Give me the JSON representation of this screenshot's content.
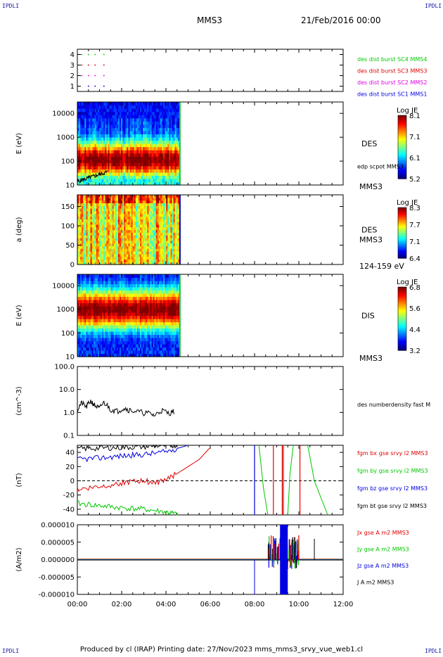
{
  "corner_label": "IPDLI",
  "header": {
    "spacecraft": "MMS3",
    "date": "21/Feb/2016 00:00"
  },
  "footer": {
    "text": "Produced by cl (IRAP)   Printing date: 27/Nov/2023   mms_mms3_srvy_vue_web1.cl"
  },
  "colors": {
    "red": "#e00000",
    "green": "#00c800",
    "blue": "#0000e0",
    "black": "#000000",
    "magenta": "#e000e0"
  },
  "chart_data": [
    {
      "type": "scatter",
      "id": "burst",
      "yticks": [
        "1",
        "2",
        "3",
        "4"
      ],
      "xlim": [
        0,
        12
      ],
      "ylim": [
        0.5,
        4.5
      ],
      "series": [
        {
          "label": "des dist burst SC1 MMS1",
          "color": "#0000e0",
          "y": 1,
          "x": [
            0.5,
            0.8,
            1.2
          ]
        },
        {
          "label": "des dist burst SC2 MMS2",
          "color": "#e000e0",
          "y": 2,
          "x": [
            0.2,
            0.5,
            0.8,
            1.2
          ]
        },
        {
          "label": "des dist burst SC3 MMS3",
          "color": "#e00000",
          "y": 3,
          "x": [
            0.2,
            0.5,
            0.8,
            1.2
          ]
        },
        {
          "label": "des dist burst SC4 MMS4",
          "color": "#00c800",
          "y": 4,
          "x": [
            0.2,
            0.5,
            0.8,
            1.2
          ]
        }
      ]
    },
    {
      "type": "heatmap",
      "id": "des_energy",
      "ylabel": "E (eV)",
      "yticks": [
        "10",
        "100",
        "1000",
        "10000"
      ],
      "ylog": true,
      "ylim": [
        10,
        30000
      ],
      "xlim": [
        0,
        12
      ],
      "data_end": 4.6,
      "right_label": "DES",
      "right_label_bottom": "MMS3",
      "overlay_label": "edp scpot MMS3",
      "colorbar": {
        "title": "Log JE",
        "ticks": [
          "8.1",
          "7.1",
          "6.1",
          "5.2"
        ]
      }
    },
    {
      "type": "heatmap",
      "id": "des_pitch",
      "ylabel": "a (deg)",
      "yticks": [
        "0",
        "50",
        "100",
        "150"
      ],
      "ylim": [
        0,
        180
      ],
      "xlim": [
        0,
        12
      ],
      "data_end": 4.6,
      "right_label": "DES",
      "right_label_mid": "MMS3",
      "right_label_bottom": "124-159 eV",
      "colorbar": {
        "title": "Log JE",
        "ticks": [
          "8.3",
          "7.7",
          "7.1",
          "6.4"
        ]
      }
    },
    {
      "type": "heatmap",
      "id": "dis_energy",
      "ylabel": "E (eV)",
      "yticks": [
        "10",
        "100",
        "1000",
        "10000"
      ],
      "ylog": true,
      "ylim": [
        10,
        30000
      ],
      "xlim": [
        0,
        12
      ],
      "data_end": 4.6,
      "right_label": "DIS",
      "right_label_bottom": "MMS3",
      "colorbar": {
        "title": "Log JE",
        "ticks": [
          "6.8",
          "5.6",
          "4.4",
          "3.2"
        ]
      }
    },
    {
      "type": "line",
      "id": "density",
      "ylabel": "(cm^-3)",
      "yticks": [
        "0.1",
        "1.0",
        "10.0",
        "100.0"
      ],
      "ylog": true,
      "ylim": [
        0.1,
        100
      ],
      "xlim": [
        0,
        12
      ],
      "series": [
        {
          "label": "des numberdensity fast M",
          "color": "#000000",
          "x": [
            0.0,
            0.2,
            0.4,
            0.6,
            0.8,
            1.0,
            1.2,
            1.5,
            1.8,
            2.1,
            2.4,
            2.8,
            3.2,
            3.5,
            3.8,
            4.1,
            4.4
          ],
          "y": [
            1.2,
            2.5,
            1.6,
            3.0,
            1.9,
            1.4,
            2.6,
            1.3,
            1.1,
            1.5,
            1.2,
            1.0,
            0.9,
            0.7,
            1.2,
            0.9,
            1.1
          ]
        }
      ]
    },
    {
      "type": "line",
      "id": "bfield",
      "ylabel": "(nT)",
      "yticks": [
        "-40",
        "-20",
        "0",
        "20",
        "40"
      ],
      "ylim": [
        -48,
        50
      ],
      "xlim": [
        0,
        12
      ],
      "series": [
        {
          "label": "fgm bx gse srvy l2 MMS3",
          "color": "#e00000",
          "x": [
            0.0,
            1.0,
            2.0,
            3.0,
            3.6,
            4.5,
            5.5,
            6.0
          ],
          "y": [
            -12,
            -8,
            -3,
            0,
            -3,
            10,
            30,
            47
          ]
        },
        {
          "label": "fgm by gse srvy l2 MMS3",
          "color": "#00c800",
          "x": [
            0.0,
            1.0,
            2.0,
            3.0,
            4.0,
            4.6
          ],
          "y": [
            -32,
            -35,
            -38,
            -40,
            -44,
            -48
          ]
        },
        {
          "label": "fgm bz gse srvy l2 MMS3",
          "color": "#0000e0",
          "x": [
            0.0,
            1.0,
            2.0,
            3.0,
            4.0,
            5.0
          ],
          "y": [
            30,
            32,
            35,
            37,
            41,
            50
          ]
        },
        {
          "label": "fgm bt gse srvy l2 MMS3",
          "color": "#000000",
          "x": [
            0.0,
            1.0,
            2.0,
            3.0,
            4.0,
            4.6
          ],
          "y": [
            45,
            46,
            47,
            48,
            50,
            50
          ]
        }
      ],
      "zero_line": true
    },
    {
      "type": "line",
      "id": "current",
      "ylabel": "(A/m2)",
      "yticks": [
        "-0.000010",
        "-0.000005",
        "0.000000",
        "0.000005",
        "0.000010"
      ],
      "ylim": [
        -1e-05,
        1e-05
      ],
      "xlim": [
        0,
        12
      ],
      "xticks": [
        "00:00",
        "02:00",
        "04:00",
        "06:00",
        "08:00",
        "10:00",
        "12:00"
      ],
      "series": [
        {
          "label": "Jx gse A m2 MMS3",
          "color": "#e00000"
        },
        {
          "label": "Jy gse A m2 MMS3",
          "color": "#00c800"
        },
        {
          "label": "Jz gse A m2 MMS3",
          "color": "#0000e0"
        },
        {
          "label": "J A m2 MMS3",
          "color": "#000000"
        }
      ]
    }
  ]
}
